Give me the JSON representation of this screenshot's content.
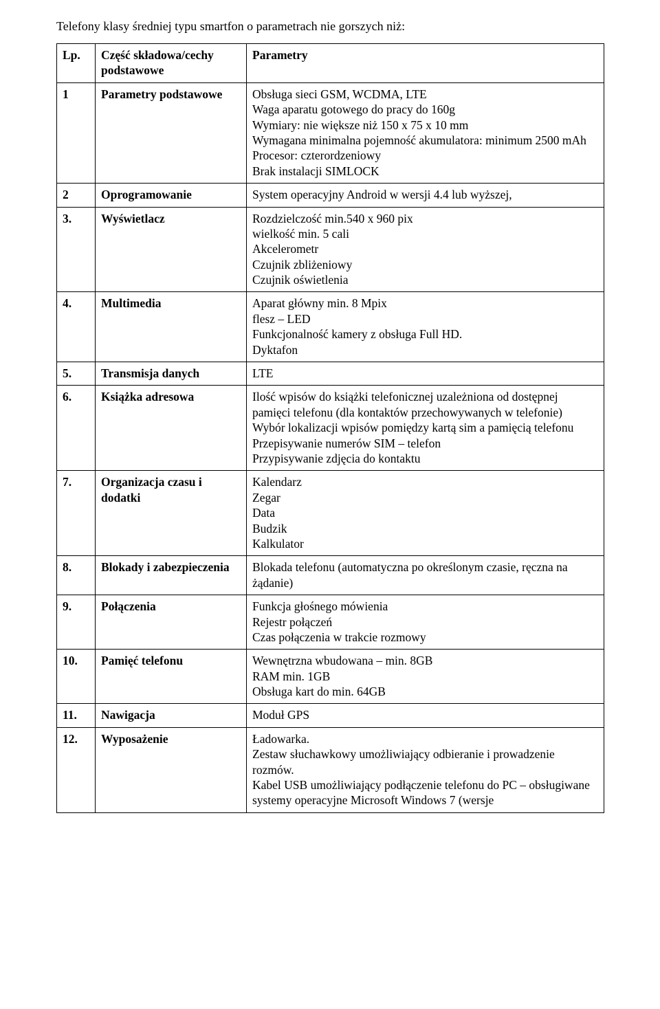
{
  "title": "Telefony klasy średniej typu smartfon o parametrach nie gorszych niż:",
  "headers": {
    "lp": "Lp.",
    "comp": "Część składowa/cechy podstawowe",
    "param": "Parametry"
  },
  "rows": [
    {
      "lp": "1",
      "comp": "Parametry podstawowe",
      "params": [
        "Obsługa sieci GSM, WCDMA, LTE",
        "Waga aparatu gotowego do pracy do 160g",
        "Wymiary: nie większe niż 150 x 75 x 10 mm",
        "Wymagana minimalna pojemność akumulatora: minimum 2500 mAh",
        "Procesor: czterordzeniowy",
        "Brak instalacji SIMLOCK"
      ]
    },
    {
      "lp": "2",
      "comp": "Oprogramowanie",
      "params": [
        "System operacyjny Android w wersji 4.4 lub wyższej,"
      ]
    },
    {
      "lp": "3.",
      "comp": "Wyświetlacz",
      "params": [
        "Rozdzielczość min.540 x 960 pix",
        "wielkość  min. 5 cali",
        "Akcelerometr",
        "Czujnik zbliżeniowy",
        "Czujnik oświetlenia"
      ]
    },
    {
      "lp": "4.",
      "comp": "Multimedia",
      "params": [
        "Aparat główny  min. 8 Mpix",
        "flesz – LED",
        "Funkcjonalność kamery z obsługa Full HD.",
        "Dyktafon"
      ]
    },
    {
      "lp": "5.",
      "comp": "Transmisja danych",
      "params": [
        "LTE"
      ]
    },
    {
      "lp": "6.",
      "comp": "Książka adresowa",
      "params": [
        "Ilość wpisów do książki telefonicznej uzależniona od dostępnej pamięci telefonu (dla kontaktów przechowywanych w telefonie)",
        "Wybór lokalizacji wpisów pomiędzy kartą sim a pamięcią telefonu",
        "Przepisywanie numerów SIM – telefon",
        "Przypisywanie zdjęcia do kontaktu"
      ]
    },
    {
      "lp": "7.",
      "comp": "Organizacja czasu i dodatki",
      "params": [
        "Kalendarz",
        "Zegar",
        "Data",
        "Budzik",
        "Kalkulator"
      ]
    },
    {
      "lp": "8.",
      "comp": "Blokady i zabezpieczenia",
      "params": [
        "Blokada telefonu (automatyczna po określonym czasie, ręczna na żądanie)"
      ]
    },
    {
      "lp": "9.",
      "comp": "Połączenia",
      "params": [
        "Funkcja głośnego mówienia",
        "Rejestr połączeń",
        "Czas połączenia w trakcie rozmowy"
      ]
    },
    {
      "lp": "10.",
      "comp": "Pamięć telefonu",
      "params": [
        "Wewnętrzna wbudowana – min. 8GB",
        "RAM min. 1GB",
        "Obsługa kart do min. 64GB"
      ]
    },
    {
      "lp": "11.",
      "comp": "Nawigacja",
      "params": [
        "Moduł GPS"
      ]
    },
    {
      "lp": "12.",
      "comp": "Wyposażenie",
      "params": [
        "Ładowarka.",
        "Zestaw słuchawkowy umożliwiający odbieranie i prowadzenie rozmów.",
        "Kabel USB umożliwiający podłączenie telefonu do PC – obsługiwane systemy operacyjne Microsoft Windows 7 (wersje"
      ]
    }
  ]
}
